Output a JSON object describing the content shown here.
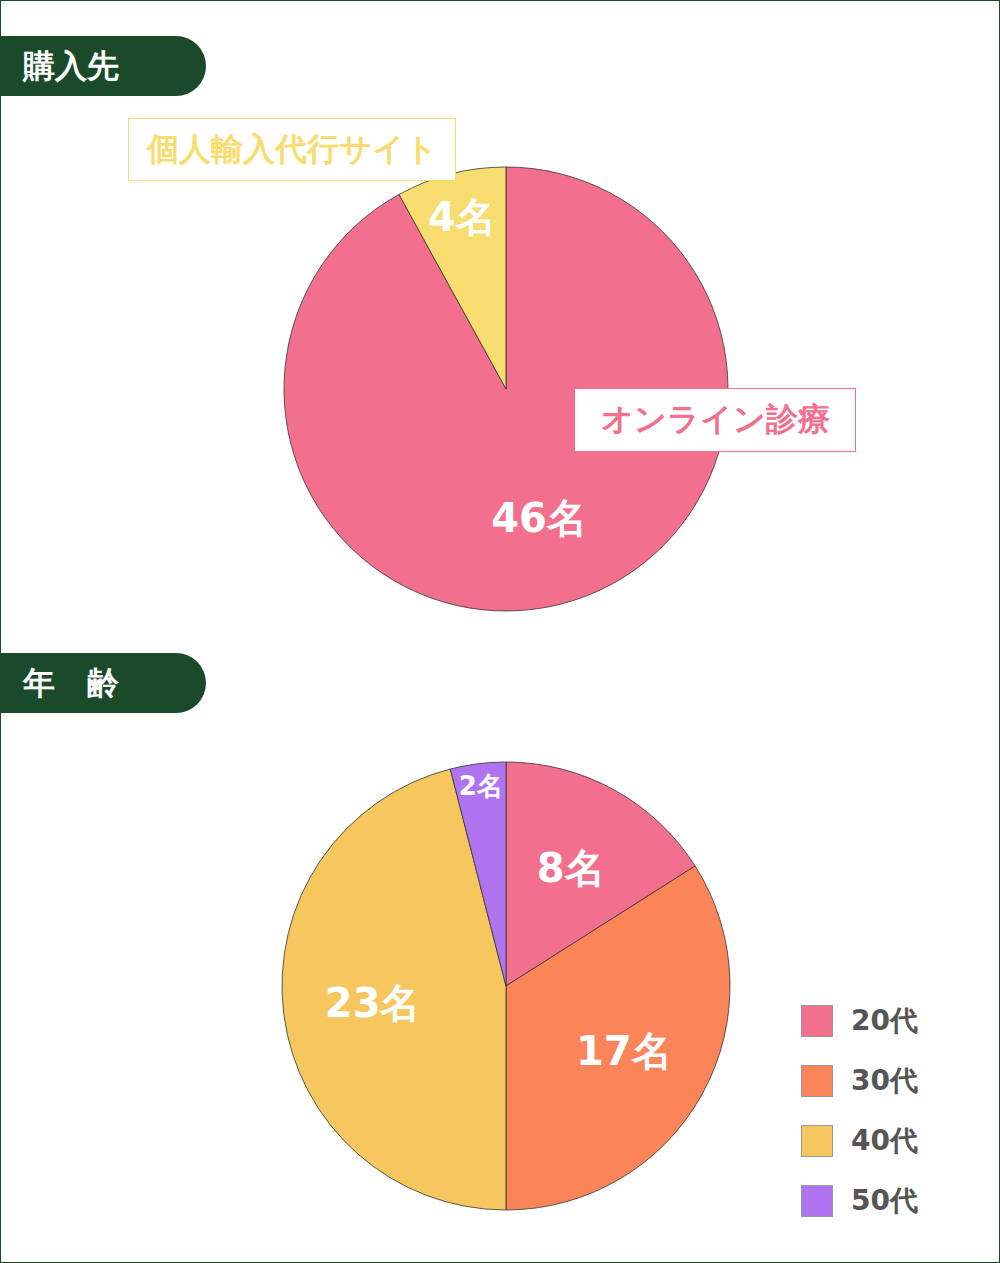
{
  "chart_data": [
    {
      "type": "pie",
      "title": "購入先",
      "categories": [
        "オンライン診療",
        "個人輸入代行サイト"
      ],
      "values": [
        46,
        4
      ],
      "value_labels": [
        "46名",
        "4名"
      ],
      "colors": [
        "#f36f8e",
        "#f7dc6f"
      ],
      "data_labels": true
    },
    {
      "type": "pie",
      "title": "年　齢",
      "categories": [
        "20代",
        "30代",
        "40代",
        "50代"
      ],
      "values": [
        8,
        17,
        23,
        2
      ],
      "value_labels": [
        "8名",
        "17名",
        "23名",
        "2名"
      ],
      "colors": [
        "#f36f8e",
        "#fb8459",
        "#f6c75e",
        "#b174f0"
      ],
      "data_labels": true,
      "legend": "right"
    }
  ]
}
